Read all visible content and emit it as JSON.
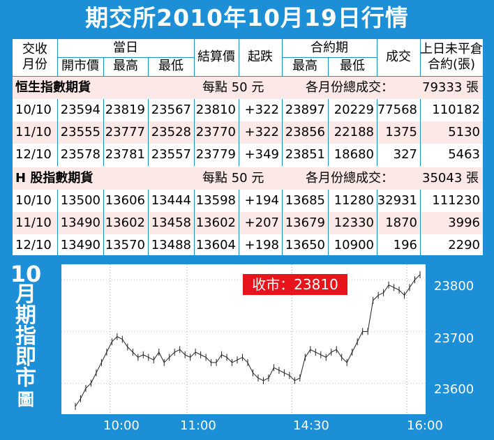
{
  "title": "期交所2010年10月19日行情",
  "header": {
    "month": "交收\n月份",
    "today": "當日",
    "open": "開市價",
    "high": "最高",
    "low": "最低",
    "settle": "結算價",
    "change": "起跌",
    "contract": "合約期",
    "c_high": "最高",
    "c_low": "最低",
    "volume": "成交",
    "oi": "上日未平倉\n合約(張)"
  },
  "sections": [
    {
      "name": "恒生指數期貨",
      "per_point": "每點 50 元",
      "total_label": "各月份總成交：",
      "total": "79333 張",
      "rows": [
        [
          "10/10",
          "23594",
          "23819",
          "23567",
          "23810",
          "+322",
          "23897",
          "20229",
          "77568",
          "110182"
        ],
        [
          "11/10",
          "23555",
          "23777",
          "23528",
          "23770",
          "+322",
          "23856",
          "22188",
          "1375",
          "5130"
        ],
        [
          "12/10",
          "23578",
          "23781",
          "23557",
          "23779",
          "+349",
          "23851",
          "18680",
          "327",
          "5463"
        ]
      ]
    },
    {
      "name": "H 股指數期貨",
      "per_point": "每點 50 元",
      "total_label": "各月份總成交：",
      "total": "35043 張",
      "rows": [
        [
          "10/10",
          "13500",
          "13606",
          "13444",
          "13598",
          "+194",
          "13685",
          "11280",
          "32931",
          "111230"
        ],
        [
          "11/10",
          "13490",
          "13602",
          "13458",
          "13602",
          "+207",
          "13679",
          "12330",
          "1870",
          "3996"
        ],
        [
          "12/10",
          "13490",
          "13570",
          "13488",
          "13604",
          "+198",
          "13650",
          "10900",
          "196",
          "2290"
        ]
      ]
    }
  ],
  "side_title": [
    "10",
    "月",
    "期",
    "指",
    "即",
    "市",
    "圖"
  ],
  "close_badge": "收市：23810",
  "chart_data": {
    "type": "line",
    "title": "",
    "x_ticks": [
      "10:00",
      "11:00",
      "14:30",
      "16:00"
    ],
    "y_ticks": [
      23800,
      23700,
      23600
    ],
    "ylim": [
      23540,
      23830
    ],
    "series": [
      {
        "values": [
          23555,
          23570,
          23590,
          23600,
          23620,
          23640,
          23660,
          23680,
          23690,
          23685,
          23670,
          23660,
          23650,
          23655,
          23650,
          23645,
          23660,
          23640,
          23650,
          23660,
          23665,
          23655,
          23650,
          23660,
          23655,
          23650,
          23640,
          23640,
          23655,
          23650,
          23640,
          23645,
          23650,
          23640,
          23620,
          23610,
          23605,
          23610,
          23630,
          23625,
          23620,
          23615,
          23605,
          23610,
          23650,
          23665,
          23660,
          23655,
          23650,
          23660,
          23665,
          23650,
          23640,
          23660,
          23680,
          23700,
          23700,
          23760,
          23770,
          23775,
          23790,
          23785,
          23780,
          23770,
          23785,
          23800,
          23810
        ]
      }
    ]
  }
}
